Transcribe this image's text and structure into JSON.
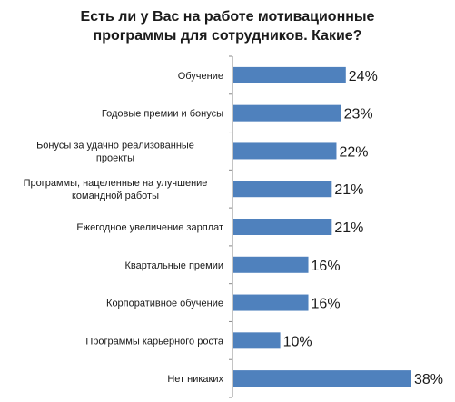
{
  "chart_data": {
    "type": "bar",
    "orientation": "horizontal",
    "title": "Есть ли у Вас на работе мотивационные программы для сотрудников. Какие?",
    "title_lines": [
      "Есть ли у Вас на работе мотивационные",
      "программы для сотрудников. Какие?"
    ],
    "categories": [
      [
        "Обучение"
      ],
      [
        "Годовые премии и бонусы"
      ],
      [
        "Бонусы за удачно реализованные",
        "проекты"
      ],
      [
        "Программы, нацеленные на улучшение",
        "командной работы"
      ],
      [
        "Ежегодное увеличение зарплат"
      ],
      [
        "Квартальные премии"
      ],
      [
        "Корпоративное обучение"
      ],
      [
        "Программы карьерного роста"
      ],
      [
        "Нет никаких"
      ]
    ],
    "values": [
      24,
      23,
      22,
      21,
      21,
      16,
      16,
      10,
      38
    ],
    "value_labels": [
      "24%",
      "23%",
      "22%",
      "21%",
      "21%",
      "16%",
      "16%",
      "10%",
      "38%"
    ],
    "xlim": [
      0,
      38
    ],
    "grid": false,
    "legend": "none",
    "bar_color": "#4f81bd",
    "axis_color": "#888888"
  }
}
